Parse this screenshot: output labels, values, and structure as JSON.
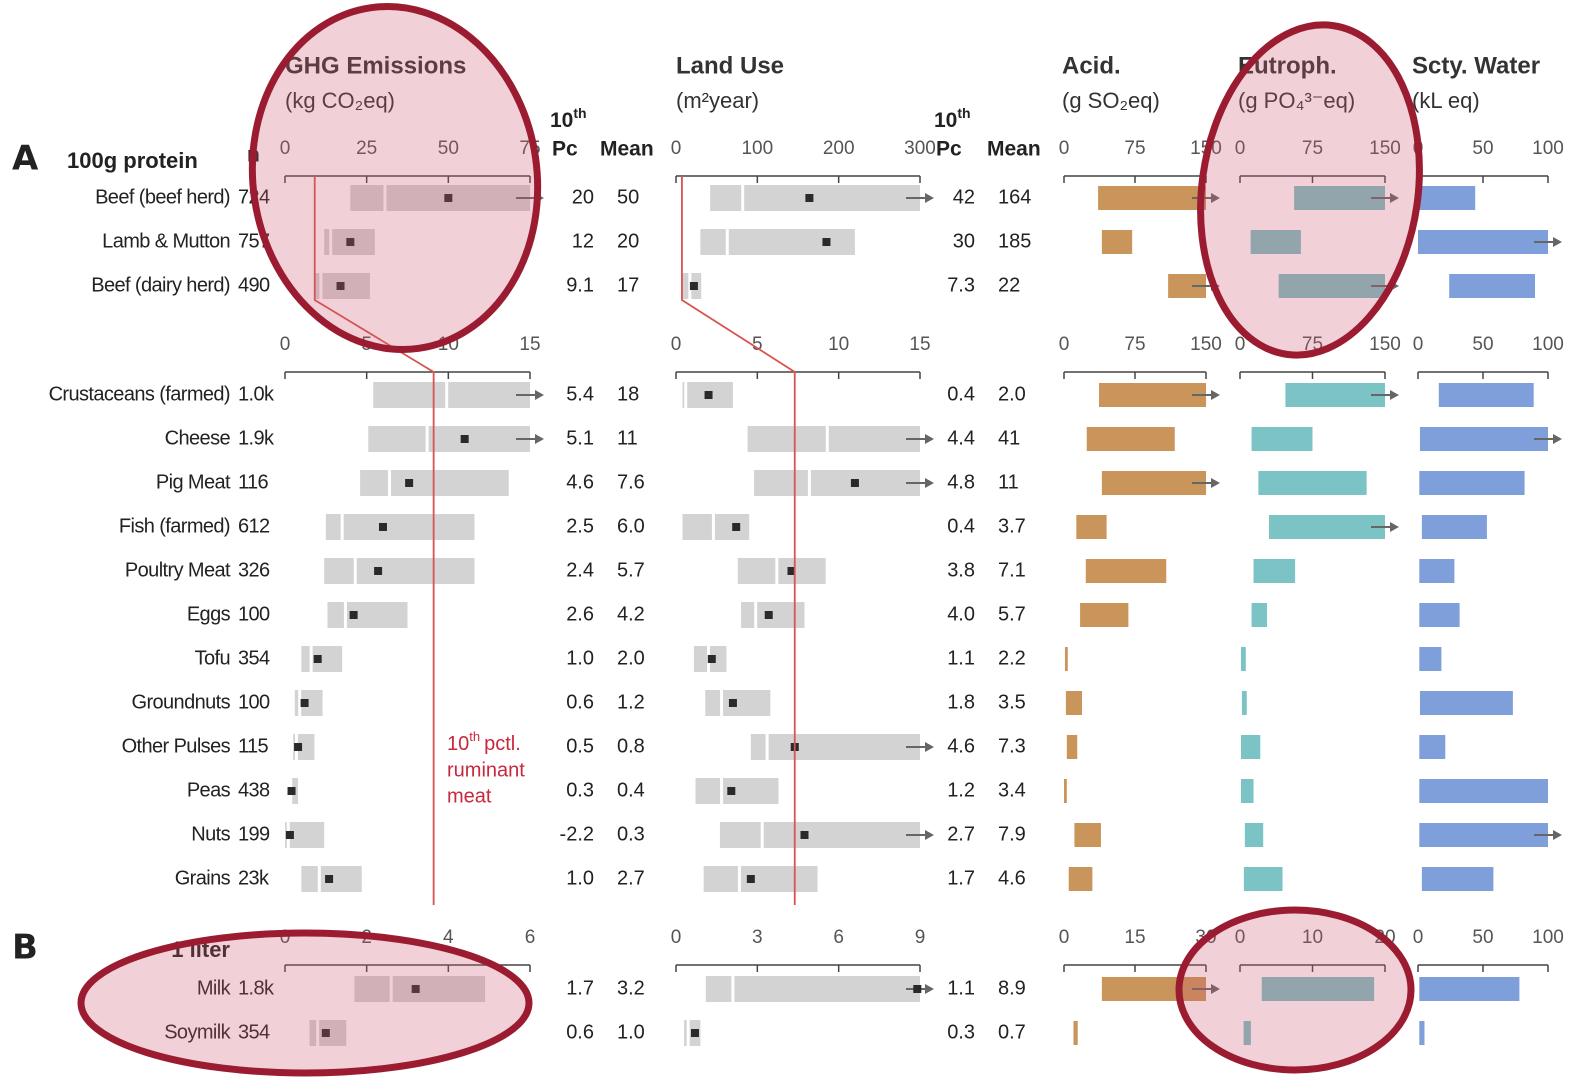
{
  "chart_data": {
    "type": "range",
    "columns": {
      "ghg": {
        "title": "GHG Emissions",
        "unit": "(kg CO₂eq)"
      },
      "land": {
        "title": "Land Use",
        "unit": "(m²year)"
      },
      "acid": {
        "title": "Acid.",
        "unit": "(g SO₂eq)"
      },
      "eutroph": {
        "title": "Eutroph.",
        "unit": "(g PO₄³⁻eq)"
      },
      "water": {
        "title": "Scty. Water",
        "unit": "(kL eq)"
      }
    },
    "n_header": "n",
    "pc_header": {
      "base": "10",
      "sup": "th",
      "text": "Pc"
    },
    "mean_header": "Mean",
    "colors": {
      "range": "#d3d3d3",
      "acid": "#c9955a",
      "eutroph": "#7cc3c5",
      "water": "#7f9fdb",
      "mean": "#2a2a2a",
      "reference": "#d9534f"
    },
    "annotation": {
      "base": "10",
      "sup": "th",
      "lines": [
        "pctl.",
        "ruminant",
        "meat"
      ]
    },
    "groups": [
      {
        "section": "A",
        "label": "100g protein",
        "axes": {
          "ghg": {
            "xlim": [
              0,
              75
            ],
            "xticks": [
              0,
              25,
              50,
              75
            ]
          },
          "land": {
            "xlim": [
              0,
              300
            ],
            "xticks": [
              0,
              100,
              200,
              300
            ]
          },
          "acid": {
            "xlim": [
              0,
              150
            ],
            "xticks": [
              0,
              75,
              150
            ]
          },
          "eutroph": {
            "xlim": [
              0,
              150
            ],
            "xticks": [
              0,
              75,
              150
            ]
          },
          "water": {
            "xlim": [
              0,
              100
            ],
            "xticks": [
              0,
              50,
              100
            ]
          }
        },
        "rows": [
          {
            "name": "Beef (beef herd)",
            "n": "724",
            "ghg": {
              "pc10": 20,
              "median": 30.6,
              "pc90": 80,
              "mean": 50
            },
            "land": {
              "pc10": 42,
              "median": 82,
              "pc90": 330,
              "mean": 164
            },
            "acid": [
              36,
              160
            ],
            "eutroph": [
              56,
              160
            ],
            "water": [
              0,
              44
            ]
          },
          {
            "name": "Lamb & Mutton",
            "n": "757",
            "ghg": {
              "pc10": 12,
              "median": 14,
              "pc90": 27.5,
              "mean": 20
            },
            "land": {
              "pc10": 30,
              "median": 63,
              "pc90": 220,
              "mean": 185
            },
            "acid": [
              40,
              72
            ],
            "eutroph": [
              11,
              63
            ],
            "water": [
              0,
              108
            ]
          },
          {
            "name": "Beef (dairy herd)",
            "n": "490",
            "ghg": {
              "pc10": 9.1,
              "median": 11,
              "pc90": 26,
              "mean": 17
            },
            "land": {
              "pc10": 7.3,
              "median": 17,
              "pc90": 31,
              "mean": 22
            },
            "acid": [
              110,
              155
            ],
            "eutroph": [
              40,
              160
            ],
            "water": [
              24,
              90
            ]
          }
        ]
      },
      {
        "axes": {
          "ghg": {
            "xlim": [
              0,
              15
            ],
            "xticks": [
              0,
              5,
              10,
              15
            ]
          },
          "land": {
            "xlim": [
              0,
              15
            ],
            "xticks": [
              0,
              5,
              10,
              15
            ]
          },
          "acid": {
            "xlim": [
              0,
              150
            ],
            "xticks": [
              0,
              75,
              150
            ]
          },
          "eutroph": {
            "xlim": [
              0,
              150
            ],
            "xticks": [
              0,
              75,
              150
            ]
          },
          "water": {
            "xlim": [
              0,
              100
            ],
            "xticks": [
              0,
              50,
              100
            ]
          }
        },
        "rows": [
          {
            "name": "Crustaceans (farmed)",
            "n": "1.0k",
            "ghg": {
              "pc10": 5.4,
              "median": 9.9,
              "pc90": 16,
              "mean": 18
            },
            "land": {
              "pc10": 0.4,
              "median": 0.6,
              "pc90": 3.5,
              "mean": 2.0,
              "mean_label": "2.0"
            },
            "acid": [
              37,
              160
            ],
            "eutroph": [
              47,
              160
            ],
            "water": [
              16,
              89
            ]
          },
          {
            "name": "Cheese",
            "n": "1.9k",
            "ghg": {
              "pc10": 5.1,
              "median": 8.7,
              "pc90": 16,
              "mean": 11
            },
            "land": {
              "pc10": 4.4,
              "median": 9.3,
              "pc90": 16,
              "mean": 41
            },
            "acid": [
              24,
              117
            ],
            "eutroph": [
              12,
              75
            ],
            "water": [
              1.5,
              108
            ]
          },
          {
            "name": "Pig Meat",
            "n": "116",
            "ghg": {
              "pc10": 4.6,
              "median": 6.4,
              "pc90": 13.7,
              "mean": 7.6
            },
            "land": {
              "pc10": 4.8,
              "median": 8.2,
              "pc90": 16.5,
              "mean": 11
            },
            "acid": [
              40,
              160
            ],
            "eutroph": [
              19,
              131
            ],
            "water": [
              1,
              82
            ]
          },
          {
            "name": "Fish (farmed)",
            "n": "612",
            "ghg": {
              "pc10": 2.5,
              "median": 3.5,
              "pc90": 11.6,
              "mean": 6.0,
              "mean_label": "6.0"
            },
            "land": {
              "pc10": 0.4,
              "median": 2.3,
              "pc90": 4.5,
              "mean": 3.7
            },
            "acid": [
              13,
              45
            ],
            "eutroph": [
              30,
              160
            ],
            "water": [
              3,
              53
            ]
          },
          {
            "name": "Poultry Meat",
            "n": "326",
            "ghg": {
              "pc10": 2.4,
              "median": 4.3,
              "pc90": 11.6,
              "mean": 5.7
            },
            "land": {
              "pc10": 3.8,
              "median": 6.2,
              "pc90": 9.2,
              "mean": 7.1
            },
            "acid": [
              23,
              108
            ],
            "eutroph": [
              14,
              57
            ],
            "water": [
              1,
              28
            ]
          },
          {
            "name": "Eggs",
            "n": "100",
            "ghg": {
              "pc10": 2.6,
              "median": 3.7,
              "pc90": 7.5,
              "mean": 4.2
            },
            "land": {
              "pc10": 4.0,
              "pc10_label": "4.0",
              "median": 4.9,
              "pc90": 7.9,
              "mean": 5.7
            },
            "acid": [
              17,
              68
            ],
            "eutroph": [
              12,
              28
            ],
            "water": [
              1,
              32
            ]
          },
          {
            "name": "Tofu",
            "n": "354",
            "ghg": {
              "pc10": 1.0,
              "pc10_label": "1.0",
              "median": 1.6,
              "pc90": 3.5,
              "mean": 2.0,
              "mean_label": "2.0"
            },
            "land": {
              "pc10": 1.1,
              "median": 2.0,
              "pc90": 3.1,
              "mean": 2.2
            },
            "acid": [
              1,
              4
            ],
            "eutroph": [
              1,
              6
            ],
            "water": [
              1,
              18
            ]
          },
          {
            "name": "Groundnuts",
            "n": "100",
            "ghg": {
              "pc10": 0.6,
              "median": 0.9,
              "pc90": 2.3,
              "mean": 1.2
            },
            "land": {
              "pc10": 1.8,
              "median": 2.8,
              "pc90": 5.8,
              "mean": 3.5
            },
            "acid": [
              2,
              19
            ],
            "eutroph": [
              2,
              7
            ],
            "water": [
              1.5,
              73
            ]
          },
          {
            "name": "Other Pulses",
            "n": "115",
            "ghg": {
              "pc10": 0.5,
              "median": 0.7,
              "pc90": 1.8,
              "mean": 0.8
            },
            "land": {
              "pc10": 4.6,
              "median": 5.6,
              "pc90": 16,
              "mean": 7.3
            },
            "acid": [
              3,
              14
            ],
            "eutroph": [
              1,
              21
            ],
            "water": [
              1,
              21
            ]
          },
          {
            "name": "Peas",
            "n": "438",
            "ghg": {
              "pc10": 0.3,
              "median": 0.35,
              "pc90": 0.8,
              "mean": 0.4
            },
            "land": {
              "pc10": 1.2,
              "median": 2.8,
              "pc90": 6.3,
              "mean": 3.4
            },
            "acid": [
              0,
              3
            ],
            "eutroph": [
              1,
              14
            ],
            "water": [
              1,
              100
            ]
          },
          {
            "name": "Nuts",
            "n": "199",
            "ghg": {
              "pc10": -2.2,
              "median": 0.2,
              "pc90": 2.4,
              "mean": 0.3
            },
            "land": {
              "pc10": 2.7,
              "median": 5.3,
              "pc90": 16,
              "mean": 7.9
            },
            "acid": [
              11,
              39
            ],
            "eutroph": [
              5,
              24
            ],
            "water": [
              1,
              108
            ]
          },
          {
            "name": "Grains",
            "n": "23k",
            "ghg": {
              "pc10": 1.0,
              "pc10_label": "1.0",
              "median": 2.1,
              "pc90": 4.7,
              "mean": 2.7
            },
            "land": {
              "pc10": 1.7,
              "median": 3.9,
              "pc90": 8.7,
              "mean": 4.6
            },
            "acid": [
              5,
              30
            ],
            "eutroph": [
              4,
              44
            ],
            "water": [
              3,
              58
            ]
          }
        ]
      },
      {
        "section": "B",
        "label": "1 liter",
        "axes": {
          "ghg": {
            "xlim": [
              0,
              6
            ],
            "xticks": [
              0,
              2,
              4,
              6
            ]
          },
          "land": {
            "xlim": [
              0,
              9
            ],
            "xticks": [
              0,
              3,
              6,
              9
            ]
          },
          "acid": {
            "xlim": [
              0,
              30
            ],
            "xticks": [
              0,
              15,
              30
            ]
          },
          "eutroph": {
            "xlim": [
              0,
              20
            ],
            "xticks": [
              0,
              10,
              20
            ]
          },
          "water": {
            "xlim": [
              0,
              100
            ],
            "xticks": [
              0,
              50,
              100
            ]
          }
        },
        "rows": [
          {
            "name": "Milk",
            "n": "1.8k",
            "ghg": {
              "pc10": 1.7,
              "median": 2.6,
              "pc90": 4.9,
              "mean": 3.2
            },
            "land": {
              "pc10": 1.1,
              "median": 2.1,
              "pc90": 10,
              "mean": 8.9
            },
            "acid": [
              8,
              32
            ],
            "eutroph": [
              3,
              18.5
            ],
            "water": [
              1,
              78
            ]
          },
          {
            "name": "Soymilk",
            "n": "354",
            "ghg": {
              "pc10": 0.6,
              "median": 0.8,
              "pc90": 1.5,
              "mean": 1.0,
              "mean_label": "1.0"
            },
            "land": {
              "pc10": 0.3,
              "median": 0.45,
              "pc90": 0.9,
              "mean": 0.7
            },
            "acid": [
              2,
              2.9
            ],
            "eutroph": [
              0.5,
              1.5
            ],
            "water": [
              1,
              5
            ]
          }
        ]
      }
    ]
  }
}
